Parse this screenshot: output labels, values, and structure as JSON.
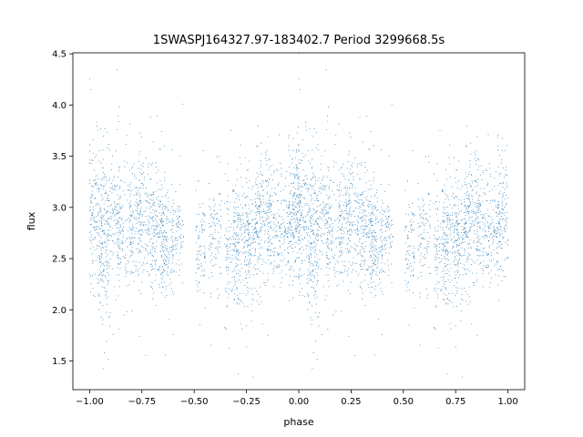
{
  "chart_data": {
    "type": "scatter",
    "title": "1SWASPJ164327.97-183402.7 Period 3299668.5s",
    "xlabel": "phase",
    "ylabel": "flux",
    "xlim": [
      -1.08,
      1.08
    ],
    "ylim": [
      1.22,
      4.51
    ],
    "xticks": [
      -1.0,
      -0.75,
      -0.5,
      -0.25,
      0.0,
      0.25,
      0.5,
      0.75,
      1.0
    ],
    "xtick_labels": [
      "−1.00",
      "−0.75",
      "−0.50",
      "−0.25",
      "0.00",
      "0.25",
      "0.50",
      "0.75",
      "1.00"
    ],
    "yticks": [
      1.5,
      2.0,
      2.5,
      3.0,
      3.5,
      4.0,
      4.5
    ],
    "ytick_labels": [
      "1.5",
      "2.0",
      "2.5",
      "3.0",
      "3.5",
      "4.0",
      "4.5"
    ],
    "grid": false,
    "legend": "none",
    "marker_color": "#1f77b4",
    "series": [
      {
        "x_range": [
          -1.0,
          1.0
        ],
        "mirrored": true,
        "clusters": [
          {
            "center": 0.02,
            "width": 0.05,
            "mean": 3.0,
            "spread": 0.32,
            "count": 260
          },
          {
            "center": 0.07,
            "width": 0.03,
            "mean": 2.45,
            "spread": 0.28,
            "count": 110
          },
          {
            "center": 0.11,
            "width": 0.04,
            "mean": 2.95,
            "spread": 0.3,
            "count": 160
          },
          {
            "center": 0.17,
            "width": 0.04,
            "mean": 2.75,
            "spread": 0.3,
            "count": 140
          },
          {
            "center": 0.22,
            "width": 0.03,
            "mean": 2.85,
            "spread": 0.28,
            "count": 110
          },
          {
            "center": 0.27,
            "width": 0.04,
            "mean": 2.95,
            "spread": 0.3,
            "count": 160
          },
          {
            "center": 0.33,
            "width": 0.04,
            "mean": 2.75,
            "spread": 0.32,
            "count": 170
          },
          {
            "center": 0.37,
            "width": 0.03,
            "mean": 2.6,
            "spread": 0.25,
            "count": 130
          },
          {
            "center": 0.42,
            "width": 0.03,
            "mean": 2.7,
            "spread": 0.22,
            "count": 90
          },
          {
            "center": 0.53,
            "width": 0.025,
            "mean": 2.6,
            "spread": 0.25,
            "count": 90
          },
          {
            "center": 0.6,
            "width": 0.03,
            "mean": 2.75,
            "spread": 0.28,
            "count": 100
          },
          {
            "center": 0.68,
            "width": 0.035,
            "mean": 2.55,
            "spread": 0.32,
            "count": 150
          },
          {
            "center": 0.73,
            "width": 0.04,
            "mean": 2.7,
            "spread": 0.3,
            "count": 160
          },
          {
            "center": 0.78,
            "width": 0.04,
            "mean": 2.65,
            "spread": 0.3,
            "count": 160
          },
          {
            "center": 0.83,
            "width": 0.04,
            "mean": 2.95,
            "spread": 0.32,
            "count": 170
          },
          {
            "center": 0.88,
            "width": 0.03,
            "mean": 2.8,
            "spread": 0.28,
            "count": 110
          },
          {
            "center": 0.93,
            "width": 0.03,
            "mean": 2.75,
            "spread": 0.28,
            "count": 110
          },
          {
            "center": 0.98,
            "width": 0.03,
            "mean": 2.95,
            "spread": 0.32,
            "count": 150
          }
        ]
      }
    ]
  }
}
